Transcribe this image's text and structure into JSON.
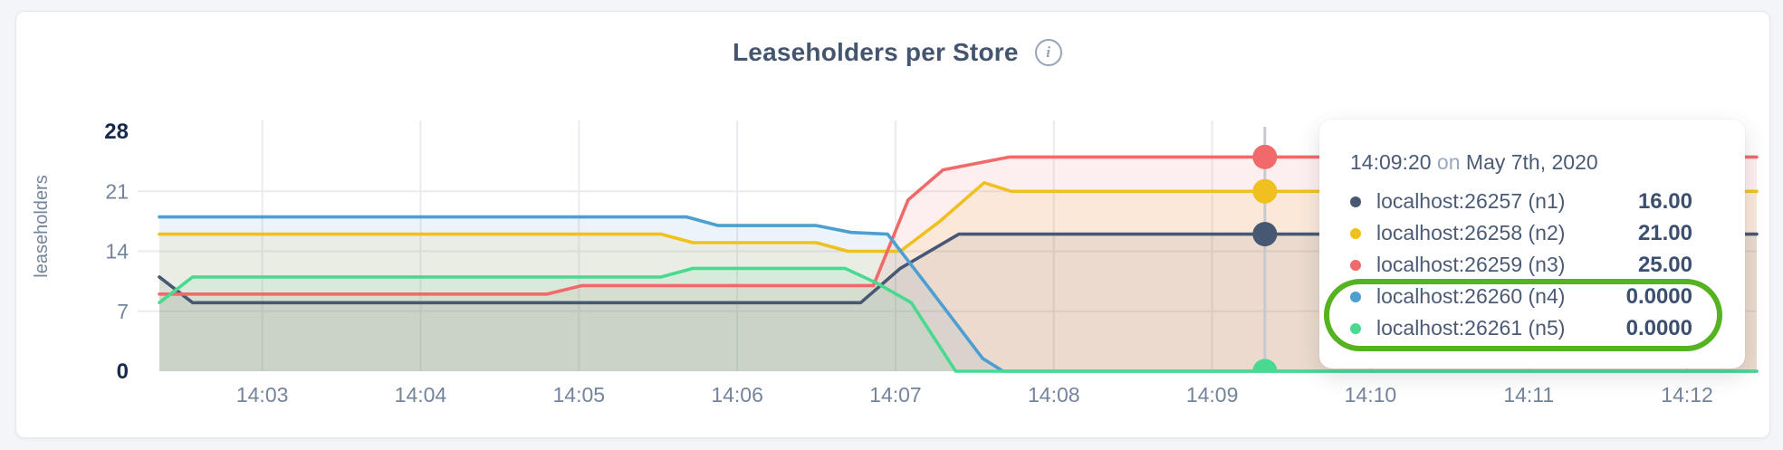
{
  "header": {
    "title": "Leaseholders per Store"
  },
  "tooltip": {
    "time": "14:09:20",
    "conjunction": "on",
    "date": "May 7th, 2020",
    "rows": [
      {
        "name": "localhost:26257 (n1)",
        "value": "16.00",
        "color": "#475872"
      },
      {
        "name": "localhost:26258 (n2)",
        "value": "21.00",
        "color": "#F0C020"
      },
      {
        "name": "localhost:26259 (n3)",
        "value": "25.00",
        "color": "#F16969"
      },
      {
        "name": "localhost:26260 (n4)",
        "value": "0.0000",
        "color": "#4E9FD1"
      },
      {
        "name": "localhost:26261 (n5)",
        "value": "0.0000",
        "color": "#49D990"
      }
    ],
    "annotation_color": "#55b221"
  },
  "chart_data": {
    "type": "area",
    "title": "Leaseholders per Store",
    "xlabel": "",
    "ylabel": "leaseholders",
    "ylim": [
      0,
      28
    ],
    "grid": true,
    "legend_position": "tooltip-right",
    "x_axis": {
      "unit": "time (HH:MM), minutes after 14:00",
      "domain_minutes": [
        2.35,
        12.44
      ],
      "ticks": [
        {
          "minute": 3,
          "label": "14:03"
        },
        {
          "minute": 4,
          "label": "14:04"
        },
        {
          "minute": 5,
          "label": "14:05"
        },
        {
          "minute": 6,
          "label": "14:06"
        },
        {
          "minute": 7,
          "label": "14:07"
        },
        {
          "minute": 8,
          "label": "14:08"
        },
        {
          "minute": 9,
          "label": "14:09"
        },
        {
          "minute": 10,
          "label": "14:10"
        },
        {
          "minute": 11,
          "label": "14:11"
        },
        {
          "minute": 12,
          "label": "14:12"
        }
      ]
    },
    "y_axis": {
      "ticks": [
        {
          "value": 0,
          "label": "0",
          "emphasis": true,
          "gridline": false
        },
        {
          "value": 7,
          "label": "7",
          "emphasis": false,
          "gridline": true
        },
        {
          "value": 14,
          "label": "14",
          "emphasis": false,
          "gridline": true
        },
        {
          "value": 21,
          "label": "21",
          "emphasis": false,
          "gridline": true
        },
        {
          "value": 28,
          "label": "28",
          "emphasis": true,
          "gridline": false
        }
      ]
    },
    "series": [
      {
        "name": "localhost:26257 (n1)",
        "color": "#475872",
        "fill_opacity": 0.11,
        "points": [
          [
            2.35,
            11
          ],
          [
            2.56,
            8
          ],
          [
            6.78,
            8
          ],
          [
            7.03,
            12
          ],
          [
            7.4,
            16
          ],
          [
            12.44,
            16
          ]
        ]
      },
      {
        "name": "localhost:26258 (n2)",
        "color": "#F0C020",
        "fill_opacity": 0.11,
        "points": [
          [
            2.35,
            16
          ],
          [
            5.52,
            16
          ],
          [
            5.72,
            15
          ],
          [
            6.5,
            15
          ],
          [
            6.7,
            14
          ],
          [
            7.03,
            14
          ],
          [
            7.28,
            17.5
          ],
          [
            7.56,
            22
          ],
          [
            7.73,
            21
          ],
          [
            12.44,
            21
          ]
        ]
      },
      {
        "name": "localhost:26259 (n3)",
        "color": "#F16969",
        "fill_opacity": 0.11,
        "points": [
          [
            2.35,
            9
          ],
          [
            4.8,
            9
          ],
          [
            5.02,
            10
          ],
          [
            6.86,
            10
          ],
          [
            7.08,
            20
          ],
          [
            7.3,
            23.5
          ],
          [
            7.72,
            25
          ],
          [
            12.44,
            25
          ]
        ]
      },
      {
        "name": "localhost:26260 (n4)",
        "color": "#4E9FD1",
        "fill_opacity": 0.11,
        "points": [
          [
            2.35,
            18
          ],
          [
            5.68,
            18
          ],
          [
            5.88,
            17
          ],
          [
            6.5,
            17
          ],
          [
            6.72,
            16.2
          ],
          [
            6.95,
            16
          ],
          [
            7.2,
            10
          ],
          [
            7.55,
            1.5
          ],
          [
            7.68,
            0
          ],
          [
            12.44,
            0
          ]
        ]
      },
      {
        "name": "localhost:26261 (n5)",
        "color": "#49D990",
        "fill_opacity": 0.11,
        "points": [
          [
            2.35,
            8
          ],
          [
            2.56,
            11
          ],
          [
            5.52,
            11
          ],
          [
            5.72,
            12
          ],
          [
            6.68,
            12
          ],
          [
            6.88,
            10.3
          ],
          [
            7.1,
            8
          ],
          [
            7.38,
            0
          ],
          [
            12.44,
            0
          ]
        ]
      }
    ],
    "hover": {
      "minute": 9.333,
      "time_label": "14:09:20",
      "dot_values": [
        {
          "series": "localhost:26257 (n1)",
          "value": 16
        },
        {
          "series": "localhost:26258 (n2)",
          "value": 21
        },
        {
          "series": "localhost:26259 (n3)",
          "value": 25
        },
        {
          "series": "localhost:26260 (n4)",
          "value": 0
        },
        {
          "series": "localhost:26261 (n5)",
          "value": 0
        }
      ]
    }
  }
}
